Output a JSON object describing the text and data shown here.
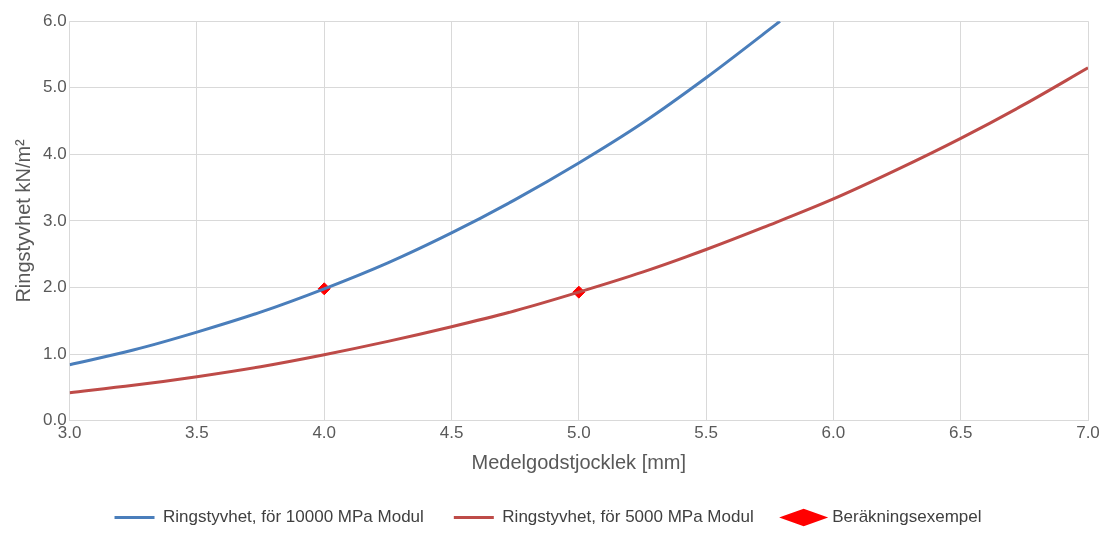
{
  "chart_data": {
    "type": "line",
    "xlabel": "Medelgodstjocklek [mm]",
    "ylabel": "Ringstyvhet kN/m²",
    "xlim": [
      3,
      7
    ],
    "xticks": [
      {
        "value": 3,
        "label": "3.0"
      },
      {
        "value": 3.5,
        "label": "3.5"
      },
      {
        "value": 4,
        "label": "4.0"
      },
      {
        "value": 4.5,
        "label": "4.5"
      },
      {
        "value": 5,
        "label": "5.0"
      },
      {
        "value": 5.5,
        "label": "5.5"
      },
      {
        "value": 6,
        "label": "6.0"
      },
      {
        "value": 6.5,
        "label": "6.5"
      },
      {
        "value": 7,
        "label": "7.0"
      }
    ],
    "ylim": [
      0,
      6
    ],
    "yticks": [
      {
        "value": 0,
        "label": "0.0"
      },
      {
        "value": 1,
        "label": "1.0"
      },
      {
        "value": 2,
        "label": "2.0"
      },
      {
        "value": 3,
        "label": "3.0"
      },
      {
        "value": 4,
        "label": "4.0"
      },
      {
        "value": 5,
        "label": "5.0"
      },
      {
        "value": 6,
        "label": "6.0"
      }
    ],
    "grid": true,
    "legend": "bottom",
    "series": [
      {
        "name": "Ringstyvhet, för 10000 MPa Modul",
        "type": "line",
        "color": "#4a7ebb",
        "x": [
          3,
          3.25,
          3.5,
          3.75,
          4,
          4.25,
          4.5,
          4.75,
          5,
          5.25,
          5.5,
          5.75,
          5.79
        ],
        "values": [
          0.84,
          1.06,
          1.33,
          1.63,
          1.98,
          2.37,
          2.82,
          3.32,
          3.87,
          4.47,
          5.15,
          5.88,
          6.0
        ]
      },
      {
        "name": "Ringstyvhet, för 5000 MPa Modul",
        "type": "line",
        "color": "#be4b48",
        "x": [
          3,
          3.25,
          3.5,
          3.75,
          4,
          4.25,
          4.5,
          4.75,
          5,
          5.25,
          5.5,
          5.75,
          6,
          6.25,
          6.5,
          6.75,
          7
        ],
        "values": [
          0.42,
          0.53,
          0.66,
          0.81,
          0.99,
          1.19,
          1.41,
          1.65,
          1.93,
          2.23,
          2.57,
          2.94,
          3.33,
          3.77,
          4.24,
          4.75,
          5.3
        ]
      },
      {
        "name": "Beräkningsexempel",
        "type": "scatter",
        "marker": "diamond",
        "color": "#ff0000",
        "x": [
          4,
          5
        ],
        "values": [
          1.98,
          1.93
        ]
      }
    ]
  }
}
